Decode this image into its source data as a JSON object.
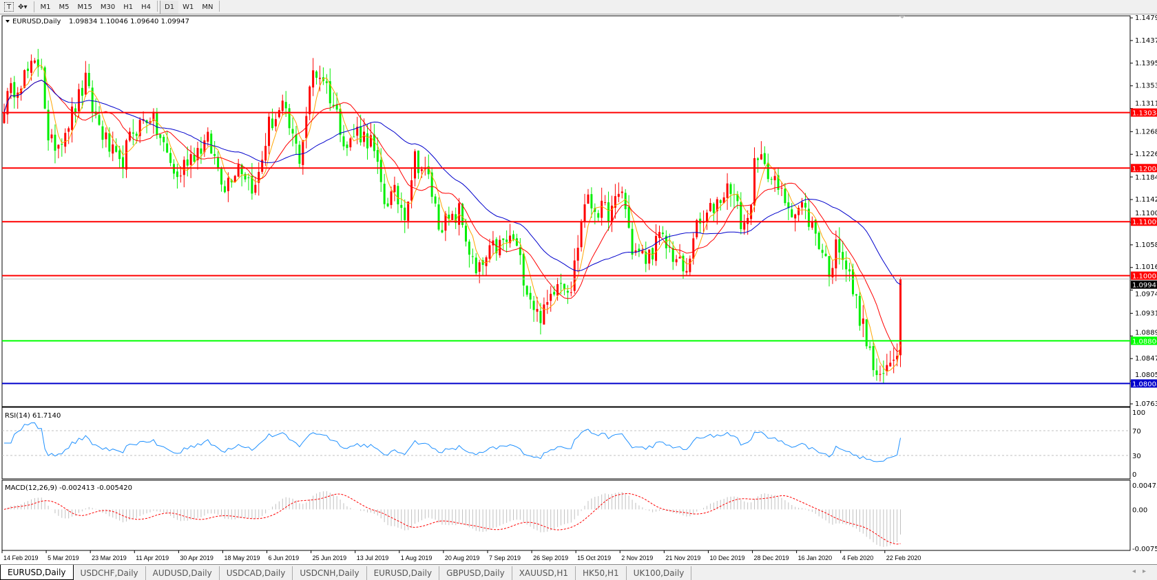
{
  "toolbar": {
    "tools": [
      {
        "icon": "text-tool-icon",
        "label": "T"
      },
      {
        "icon": "objects-dropdown-icon",
        "label": "▾"
      }
    ],
    "timeframes": [
      "M1",
      "M5",
      "M15",
      "M30",
      "H1",
      "H4",
      "D1",
      "W1",
      "MN"
    ],
    "active_timeframe": "D1"
  },
  "chart_header": {
    "symbol": "EURUSD,Daily",
    "ohlc": "1.09834 1.10046 1.09640 1.09947"
  },
  "price_axis": {
    "ticks": [
      "1.14790",
      "1.14370",
      "1.13950",
      "1.13530",
      "1.13110",
      "1.12680",
      "1.12260",
      "1.11840",
      "1.11420",
      "1.11000",
      "1.10580",
      "1.10160",
      "1.09740",
      "1.09310",
      "1.08890",
      "1.08470",
      "1.08050",
      "1.07630"
    ]
  },
  "levels": [
    {
      "price": 1.13034,
      "label": "1.13034",
      "color": "#ff0000"
    },
    {
      "price": 1.12004,
      "label": "1.12004",
      "color": "#ff0000"
    },
    {
      "price": 1.11009,
      "label": "1.11009",
      "color": "#ff0000"
    },
    {
      "price": 1.10008,
      "label": "1.10008",
      "color": "#ff0000"
    },
    {
      "price": 1.088,
      "label": "1.08800",
      "color": "#00ff00"
    },
    {
      "price": 1.08008,
      "label": "1.08008",
      "color": "#0000cc"
    }
  ],
  "current_price": {
    "price": 1.09947,
    "label": "1.09947"
  },
  "date_axis": [
    "14 Feb 2019",
    "5 Mar 2019",
    "23 Mar 2019",
    "11 Apr 2019",
    "30 Apr 2019",
    "18 May 2019",
    "6 Jun 2019",
    "25 Jun 2019",
    "13 Jul 2019",
    "1 Aug 2019",
    "20 Aug 2019",
    "7 Sep 2019",
    "26 Sep 2019",
    "15 Oct 2019",
    "2 Nov 2019",
    "21 Nov 2019",
    "10 Dec 2019",
    "28 Dec 2019",
    "16 Jan 2020",
    "4 Feb 2020",
    "22 Feb 2020"
  ],
  "rsi": {
    "label": "RSI(14) 61.7140",
    "ticks": [
      "100",
      "70",
      "30",
      "0"
    ],
    "color": "#1e90ff"
  },
  "macd": {
    "label": "MACD(12,26,9) -0.002413 -0.005420",
    "ticks": [
      "0.004738",
      "0.00",
      "-0.00758"
    ],
    "signal_color": "#ff0000",
    "histogram_color": "#c0c0c0"
  },
  "colors": {
    "bull_candle": "#ff0000",
    "bear_candle": "#00ee00",
    "ma_fast": "#ffa500",
    "ma_mid": "#ff0000",
    "ma_slow": "#0000cc"
  },
  "chart_data": {
    "type": "candlestick",
    "symbol": "EURUSD",
    "timeframe": "Daily",
    "ylim": [
      1.0763,
      1.1479
    ],
    "close_path": [
      [
        0,
        1.132
      ],
      [
        4,
        1.136
      ],
      [
        11,
        1.14
      ],
      [
        13,
        1.124
      ],
      [
        16,
        1.125
      ],
      [
        20,
        1.13
      ],
      [
        24,
        1.136
      ],
      [
        26,
        1.131
      ],
      [
        30,
        1.125
      ],
      [
        34,
        1.12
      ],
      [
        38,
        1.127
      ],
      [
        43,
        1.13
      ],
      [
        47,
        1.124
      ],
      [
        51,
        1.118
      ],
      [
        54,
        1.122
      ],
      [
        60,
        1.125
      ],
      [
        65,
        1.117
      ],
      [
        69,
        1.121
      ],
      [
        74,
        1.116
      ],
      [
        78,
        1.128
      ],
      [
        82,
        1.131
      ],
      [
        87,
        1.122
      ],
      [
        91,
        1.138
      ],
      [
        94,
        1.137
      ],
      [
        98,
        1.13
      ],
      [
        101,
        1.124
      ],
      [
        104,
        1.127
      ],
      [
        108,
        1.125
      ],
      [
        112,
        1.114
      ],
      [
        115,
        1.115
      ],
      [
        118,
        1.112
      ],
      [
        121,
        1.122
      ],
      [
        125,
        1.118
      ],
      [
        128,
        1.11
      ],
      [
        132,
        1.11
      ],
      [
        134,
        1.112
      ],
      [
        139,
        1.1
      ],
      [
        141,
        1.102
      ],
      [
        144,
        1.105
      ],
      [
        150,
        1.107
      ],
      [
        154,
        1.098
      ],
      [
        157,
        1.093
      ],
      [
        159,
        1.093
      ],
      [
        163,
        1.1
      ],
      [
        167,
        1.098
      ],
      [
        171,
        1.114
      ],
      [
        176,
        1.112
      ],
      [
        179,
        1.112
      ],
      [
        182,
        1.116
      ],
      [
        185,
        1.105
      ],
      [
        189,
        1.103
      ],
      [
        193,
        1.107
      ],
      [
        197,
        1.104
      ],
      [
        201,
        1.1
      ],
      [
        203,
        1.108
      ],
      [
        206,
        1.11
      ],
      [
        210,
        1.114
      ],
      [
        214,
        1.117
      ],
      [
        217,
        1.11
      ],
      [
        219,
        1.11
      ],
      [
        221,
        1.12
      ],
      [
        224,
        1.122
      ],
      [
        226,
        1.118
      ],
      [
        229,
        1.115
      ],
      [
        233,
        1.112
      ],
      [
        235,
        1.113
      ],
      [
        239,
        1.108
      ],
      [
        242,
        1.103
      ],
      [
        244,
        1.1
      ],
      [
        245,
        1.108
      ],
      [
        247,
        1.104
      ],
      [
        251,
        1.095
      ],
      [
        254,
        1.088
      ],
      [
        256,
        1.083
      ],
      [
        258,
        1.08
      ],
      [
        260,
        1.083
      ],
      [
        263,
        1.087
      ],
      [
        264,
        1.09947
      ]
    ]
  },
  "tabs": [
    "EURUSD,Daily",
    "USDCHF,Daily",
    "AUDUSD,Daily",
    "USDCAD,Daily",
    "USDCNH,Daily",
    "EURUSD,Daily",
    "GBPUSD,Daily",
    "XAUUSD,H1",
    "HK50,H1",
    "UK100,Daily"
  ],
  "active_tab": 0
}
